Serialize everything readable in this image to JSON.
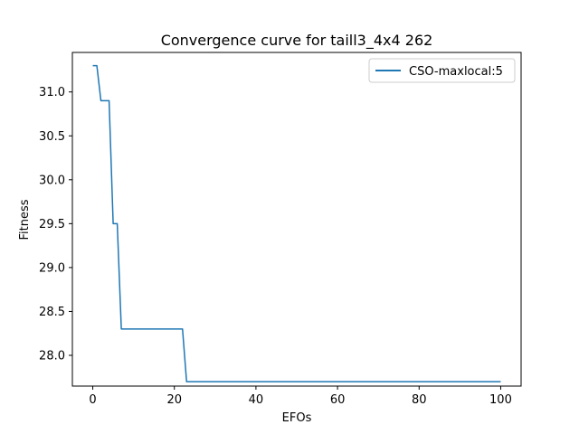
{
  "chart_data": {
    "type": "line",
    "title": "Convergence curve for taill3_4x4 262",
    "xlabel": "EFOs",
    "ylabel": "Fitness",
    "xlim": [
      -5,
      105
    ],
    "ylim": [
      27.65,
      31.45
    ],
    "xticks": [
      0,
      20,
      40,
      60,
      80,
      100
    ],
    "xtick_labels": [
      "0",
      "20",
      "40",
      "60",
      "80",
      "100"
    ],
    "yticks": [
      28.0,
      28.5,
      29.0,
      29.5,
      30.0,
      30.5,
      31.0
    ],
    "ytick_labels": [
      "28.0",
      "28.5",
      "29.0",
      "29.5",
      "30.0",
      "30.5",
      "31.0"
    ],
    "grid": false,
    "legend_position": "upper right",
    "series": [
      {
        "name": "CSO-maxlocal:5",
        "color": "#1f77b4",
        "x": [
          0,
          1,
          2,
          3,
          4,
          5,
          6,
          7,
          22,
          23,
          100
        ],
        "y": [
          31.3,
          31.3,
          30.9,
          30.9,
          30.9,
          29.5,
          29.5,
          28.3,
          28.3,
          27.7,
          27.7
        ]
      }
    ]
  }
}
